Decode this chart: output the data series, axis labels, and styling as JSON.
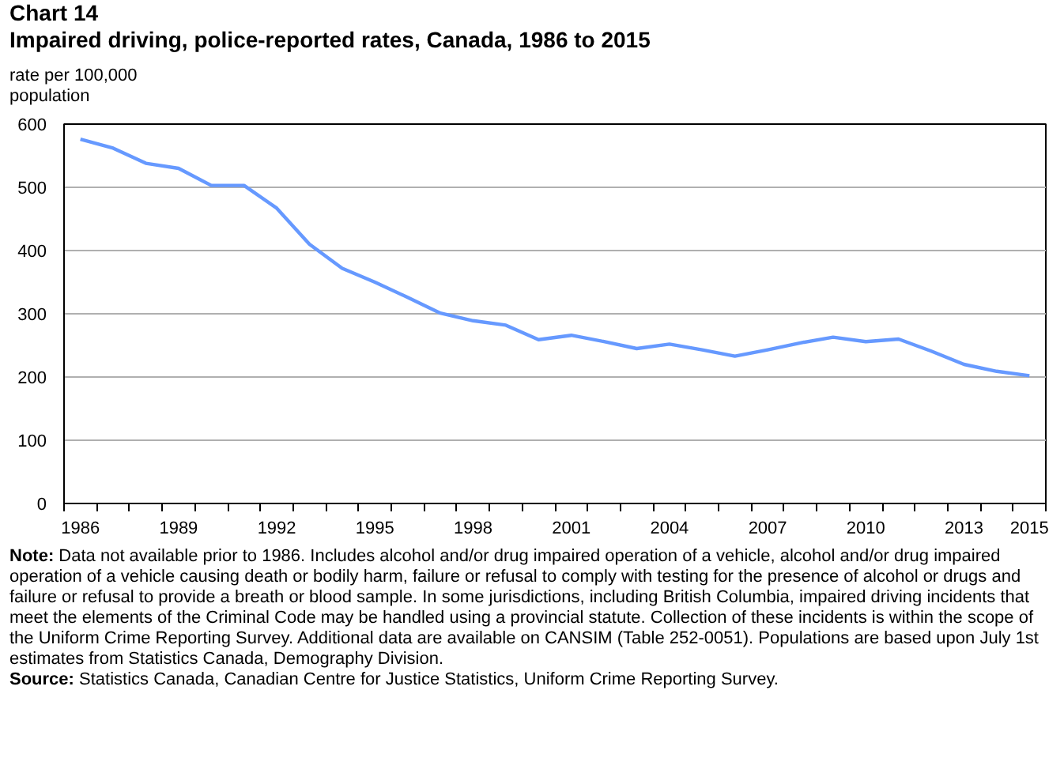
{
  "chart_data": {
    "type": "line",
    "title": "Chart 14",
    "subtitle": "Impaired driving, police-reported rates, Canada, 1986 to 2015",
    "ylabel": "rate per 100,000 population",
    "categories": [
      "1986",
      null,
      null,
      "1989",
      null,
      null,
      "1992",
      null,
      null,
      "1995",
      null,
      null,
      "1998",
      null,
      null,
      "2001",
      null,
      null,
      "2004",
      null,
      null,
      "2007",
      null,
      null,
      "2010",
      null,
      null,
      "2013",
      null,
      "2015"
    ],
    "series": [
      {
        "color": "#6699ff",
        "values": [
          576,
          562,
          538,
          530,
          503,
          503,
          467,
          410,
          372,
          350,
          326,
          301,
          289,
          282,
          259,
          266,
          256,
          245,
          252,
          243,
          233,
          243,
          254,
          263,
          256,
          260,
          241,
          220,
          209,
          202
        ]
      }
    ],
    "ylim": [
      0,
      600
    ],
    "yticks": [
      0,
      100,
      200,
      300,
      400,
      500,
      600
    ],
    "grid": "y",
    "marker": "none",
    "line_style": "solid",
    "annotations": [
      "Note: Data not available prior to 1986. Includes alcohol and/or drug impaired operation of a vehicle, alcohol and/or drug impaired operation of a vehicle causing death or bodily harm, failure or refusal to comply with testing for the presence of alcohol or drugs and failure or refusal to provide a breath or blood sample. In some jurisdictions, including British Columbia, impaired driving incidents that meet the elements of the Criminal Code may be handled using a provincial statute. Collection of these incidents is within the scope of the Uniform Crime Reporting Survey. Additional data are available on CANSIM (Table 252-0051). Populations are based upon July 1st estimates from Statistics Canada, Demography Division.",
      "Source: Statistics Canada, Canadian Centre for Justice Statistics, Uniform Crime Reporting Survey."
    ]
  }
}
